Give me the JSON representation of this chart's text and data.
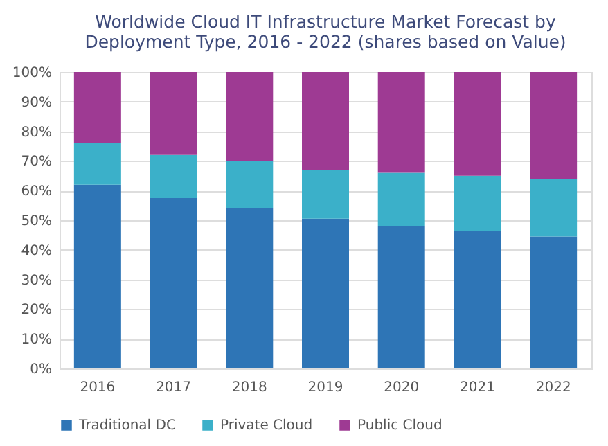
{
  "chart_data": {
    "type": "bar",
    "stacked": true,
    "title": [
      "Worldwide Cloud IT Infrastructure Market Forecast by",
      "Deployment Type, 2016 - 2022 (shares based on Value)"
    ],
    "categories": [
      "2016",
      "2017",
      "2018",
      "2019",
      "2020",
      "2021",
      "2022"
    ],
    "series": [
      {
        "name": "Traditional DC",
        "color": "#2e75b6",
        "values": [
          62,
          57.5,
          54,
          50.5,
          48,
          46.5,
          44.5
        ]
      },
      {
        "name": "Private Cloud",
        "color": "#3bb0c9",
        "values": [
          14,
          14.5,
          16,
          16.5,
          18,
          18.5,
          19.5
        ]
      },
      {
        "name": "Public Cloud",
        "color": "#9e3a93",
        "values": [
          24,
          28,
          30,
          33,
          34,
          35,
          36
        ]
      }
    ],
    "ylim": [
      0,
      100
    ],
    "yticks": [
      {
        "value": 0,
        "label": "0%"
      },
      {
        "value": 10,
        "label": "10%"
      },
      {
        "value": 20,
        "label": "20%"
      },
      {
        "value": 30,
        "label": "30%"
      },
      {
        "value": 40,
        "label": "40%"
      },
      {
        "value": 50,
        "label": "50%"
      },
      {
        "value": 60,
        "label": "60%"
      },
      {
        "value": 70,
        "label": "70%"
      },
      {
        "value": 80,
        "label": "80%"
      },
      {
        "value": 90,
        "label": "90%"
      },
      {
        "value": 100,
        "label": "100%"
      }
    ],
    "grid": "y",
    "legend": "bottom"
  }
}
